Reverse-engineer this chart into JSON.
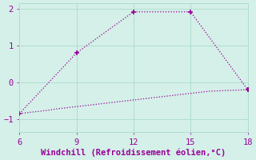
{
  "x_line1": [
    6,
    9,
    12,
    15,
    18
  ],
  "y_line1": [
    -0.85,
    0.8,
    1.92,
    1.92,
    -0.2
  ],
  "x_line2": [
    6,
    6.5,
    7,
    7.5,
    8,
    8.5,
    9,
    9.5,
    10,
    10.5,
    11,
    11.5,
    12,
    12.5,
    13,
    13.5,
    14,
    14.5,
    15,
    15.5,
    16,
    16.5,
    17,
    17.5,
    18
  ],
  "y_line2": [
    -0.85,
    -0.82,
    -0.79,
    -0.76,
    -0.72,
    -0.69,
    -0.66,
    -0.63,
    -0.6,
    -0.57,
    -0.54,
    -0.51,
    -0.48,
    -0.45,
    -0.42,
    -0.39,
    -0.36,
    -0.33,
    -0.3,
    -0.27,
    -0.24,
    -0.23,
    -0.22,
    -0.21,
    -0.2
  ],
  "line_color": "#990099",
  "bg_color": "#d4f0e8",
  "grid_color": "#b0ddd0",
  "xlabel": "Windchill (Refroidissement éolien,°C)",
  "xlim": [
    6,
    18
  ],
  "ylim": [
    -1.35,
    2.15
  ],
  "xticks": [
    6,
    9,
    12,
    15,
    18
  ],
  "yticks": [
    -1,
    0,
    1,
    2
  ],
  "xlabel_color": "#990099",
  "xlabel_fontsize": 7.5,
  "tick_fontsize": 7.5,
  "tick_color": "#990099",
  "line_width": 0.9,
  "marker_size": 4
}
